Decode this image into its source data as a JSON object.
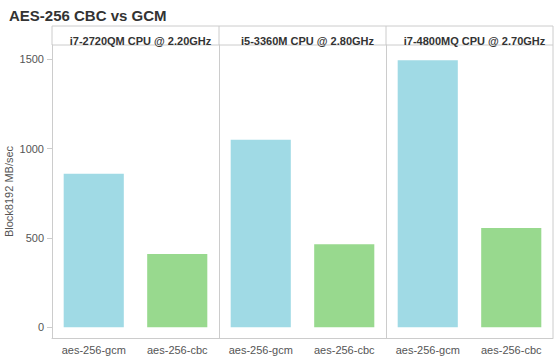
{
  "title": "AES-256 CBC vs GCM",
  "chart_data": [
    {
      "type": "bar",
      "title": "i7-2720QM CPU @ 2.20GHz",
      "y_label": "Block8192 MB/sec",
      "categories": [
        "aes-256-gcm",
        "aes-256-cbc"
      ],
      "values": [
        860,
        410
      ],
      "colors": [
        "#a0dae5",
        "#98d98e"
      ],
      "ylim": [
        -60,
        1580
      ],
      "yticks": [
        0,
        500,
        1000,
        1500
      ],
      "grid": false
    },
    {
      "type": "bar",
      "title": "i5-3360M CPU @ 2.80GHz",
      "categories": [
        "aes-256-gcm",
        "aes-256-cbc"
      ],
      "values": [
        1050,
        465
      ],
      "colors": [
        "#a0dae5",
        "#98d98e"
      ],
      "ylim": [
        -60,
        1580
      ],
      "yticks": [
        0,
        500,
        1000,
        1500
      ],
      "grid": false,
      "tick_labels": "x"
    },
    {
      "type": "bar",
      "title": "i7-4800MQ CPU @ 2.70GHz",
      "categories": [
        "aes-256-gcm",
        "aes-256-cbc"
      ],
      "values": [
        1495,
        555
      ],
      "colors": [
        "#a0dae5",
        "#98d98e"
      ],
      "ylim": [
        -60,
        1580
      ],
      "yticks": [
        0,
        500,
        1000,
        1500
      ],
      "grid": false,
      "tick_labels": "x"
    }
  ]
}
